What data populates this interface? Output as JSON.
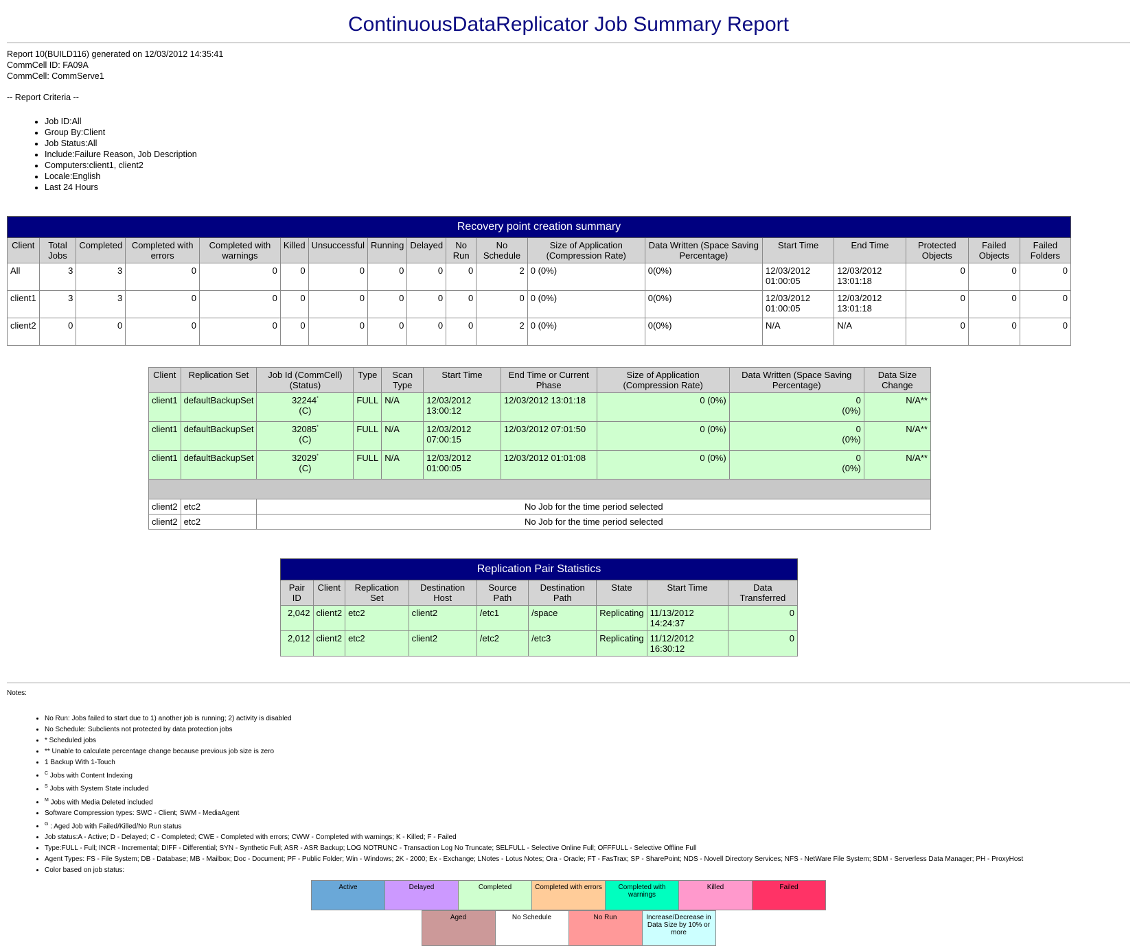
{
  "title": "ContinuousDataReplicator Job Summary Report",
  "info": {
    "report_line": "Report 10(BUILD116) generated on 12/03/2012 14:35:41",
    "commcell_id": "CommCell ID: FA09A",
    "commcell": "CommCell: CommServe1"
  },
  "criteria_title": "-- Report Criteria --",
  "criteria": [
    "Job ID:All",
    "Group By:Client",
    "Job Status:All",
    "Include:Failure Reason, Job Description",
    "Computers:client1, client2",
    "Locale:English",
    "Last 24 Hours"
  ],
  "summary": {
    "title": "Recovery point creation summary",
    "headers": [
      "Client",
      "Total Jobs",
      "Completed",
      "Completed with errors",
      "Completed with warnings",
      "Killed",
      "Unsuccessful",
      "Running",
      "Delayed",
      "No Run",
      "No Schedule",
      "Size of Application (Compression Rate)",
      "Data Written (Space Saving Percentage)",
      "Start Time",
      "End Time",
      "Protected Objects",
      "Failed Objects",
      "Failed Folders"
    ],
    "rows": [
      [
        "All",
        "3",
        "3",
        "0",
        "0",
        "0",
        "0",
        "0",
        "0",
        "0",
        "2",
        "0 (0%)",
        "0(0%)",
        "12/03/2012 01:00:05",
        "12/03/2012 13:01:18",
        "0",
        "0",
        "0"
      ],
      [
        "client1",
        "3",
        "3",
        "0",
        "0",
        "0",
        "0",
        "0",
        "0",
        "0",
        "0",
        "0 (0%)",
        "0(0%)",
        "12/03/2012 01:00:05",
        "12/03/2012 13:01:18",
        "0",
        "0",
        "0"
      ],
      [
        "client2",
        "0",
        "0",
        "0",
        "0",
        "0",
        "0",
        "0",
        "0",
        "0",
        "2",
        "0 (0%)",
        "0(0%)",
        "N/A",
        "N/A",
        "0",
        "0",
        "0"
      ]
    ]
  },
  "jobs": {
    "headers": [
      "Client",
      "Replication Set",
      "Job Id (CommCell) (Status)",
      "Type",
      "Scan Type",
      "Start Time",
      "End Time or Current Phase",
      "Size of Application (Compression Rate)",
      "Data Written (Space Saving Percentage)",
      "Data Size Change"
    ],
    "rows": [
      {
        "client": "client1",
        "set": "defaultBackupSet",
        "job_id": "32244",
        "job_mark": "*",
        "status": "(C)",
        "type": "FULL",
        "scan": "N/A",
        "start": "12/03/2012 13:00:12",
        "end": "12/03/2012 13:01:18",
        "size": "0 (0%)",
        "written": "0",
        "written_pct": "(0%)",
        "change": "N/A**"
      },
      {
        "client": "client1",
        "set": "defaultBackupSet",
        "job_id": "32085",
        "job_mark": "*",
        "status": "(C)",
        "type": "FULL",
        "scan": "N/A",
        "start": "12/03/2012 07:00:15",
        "end": "12/03/2012 07:01:50",
        "size": "0 (0%)",
        "written": "0",
        "written_pct": "(0%)",
        "change": "N/A**"
      },
      {
        "client": "client1",
        "set": "defaultBackupSet",
        "job_id": "32029",
        "job_mark": "*",
        "status": "(C)",
        "type": "FULL",
        "scan": "N/A",
        "start": "12/03/2012 01:00:05",
        "end": "12/03/2012 01:01:08",
        "size": "0 (0%)",
        "written": "0",
        "written_pct": "(0%)",
        "change": "N/A**"
      }
    ],
    "no_job_rows": [
      {
        "client": "client2",
        "set": "etc2",
        "message": "No Job for the time period selected"
      },
      {
        "client": "client2",
        "set": "etc2",
        "message": "No Job for the time period selected"
      }
    ]
  },
  "pairs": {
    "title": "Replication Pair Statistics",
    "headers": [
      "Pair ID",
      "Client",
      "Replication Set",
      "Destination Host",
      "Source Path",
      "Destination Path",
      "State",
      "Start Time",
      "Data Transferred"
    ],
    "rows": [
      [
        "2,042",
        "client2",
        "etc2",
        "client2",
        "/etc1",
        "/space",
        "Replicating",
        "11/13/2012 14:24:37",
        "0"
      ],
      [
        "2,012",
        "client2",
        "etc2",
        "client2",
        "/etc2",
        "/etc3",
        "Replicating",
        "11/12/2012 16:30:12",
        "0"
      ]
    ]
  },
  "notes_title": "Notes:",
  "notes": [
    {
      "sup": "",
      "text": "No Run: Jobs failed to start due to 1) another job is running; 2) activity is disabled"
    },
    {
      "sup": "",
      "text": "No Schedule: Subclients not protected by data protection jobs"
    },
    {
      "sup": "",
      "text": "* Scheduled jobs"
    },
    {
      "sup": "",
      "text": "** Unable to calculate percentage change because previous job size is zero"
    },
    {
      "sup": "",
      "text": "1 Backup With 1-Touch"
    },
    {
      "sup": "C",
      "text": "Jobs with Content Indexing"
    },
    {
      "sup": "S",
      "text": "Jobs with System State included"
    },
    {
      "sup": "M",
      "text": "Jobs with Media Deleted included"
    },
    {
      "sup": "",
      "text": "Software Compression types: SWC - Client; SWM - MediaAgent"
    },
    {
      "sup": "G",
      "text": ": Aged Job with Failed/Killed/No Run status"
    },
    {
      "sup": "",
      "text": "Job status:A - Active; D - Delayed; C - Completed; CWE - Completed with errors; CWW - Completed with warnings; K - Killed; F - Failed"
    },
    {
      "sup": "",
      "text": "Type:FULL - Full; INCR - Incremental; DIFF - Differential; SYN - Synthetic Full; ASR - ASR Backup; LOG NOTRUNC - Transaction Log No Truncate; SELFULL - Selective Online Full; OFFFULL - Selective Offline Full"
    },
    {
      "sup": "",
      "text": "Agent Types: FS - File System; DB - Database; MB - Mailbox; Doc - Document; PF - Public Folder; Win - Windows; 2K - 2000; Ex - Exchange; LNotes - Lotus Notes; Ora - Oracle; FT - FasTrax; SP - SharePoint; NDS - Novell Directory Services; NFS - NetWare File System; SDM - Serverless Data Manager; PH - ProxyHost"
    },
    {
      "sup": "",
      "text": "Color based on job status:"
    }
  ],
  "legend_row1": [
    {
      "label": "Active",
      "color": "#6aa8d8"
    },
    {
      "label": "Delayed",
      "color": "#cc99ff"
    },
    {
      "label": "Completed",
      "color": "#cfffcf"
    },
    {
      "label": "Completed with errors",
      "color": "#ffcc99"
    },
    {
      "label": "Completed with warnings",
      "color": "#00ffbf"
    },
    {
      "label": "Killed",
      "color": "#ff99cc"
    },
    {
      "label": "Failed",
      "color": "#ff3366"
    }
  ],
  "legend_row2": [
    {
      "label": "Aged",
      "color": "#cc9999"
    },
    {
      "label": "No Schedule",
      "color": "#ffffff"
    },
    {
      "label": "No Run",
      "color": "#ff9999"
    },
    {
      "label": "Increase/Decrease in Data Size by 10% or more",
      "color": "#ccffff"
    }
  ]
}
